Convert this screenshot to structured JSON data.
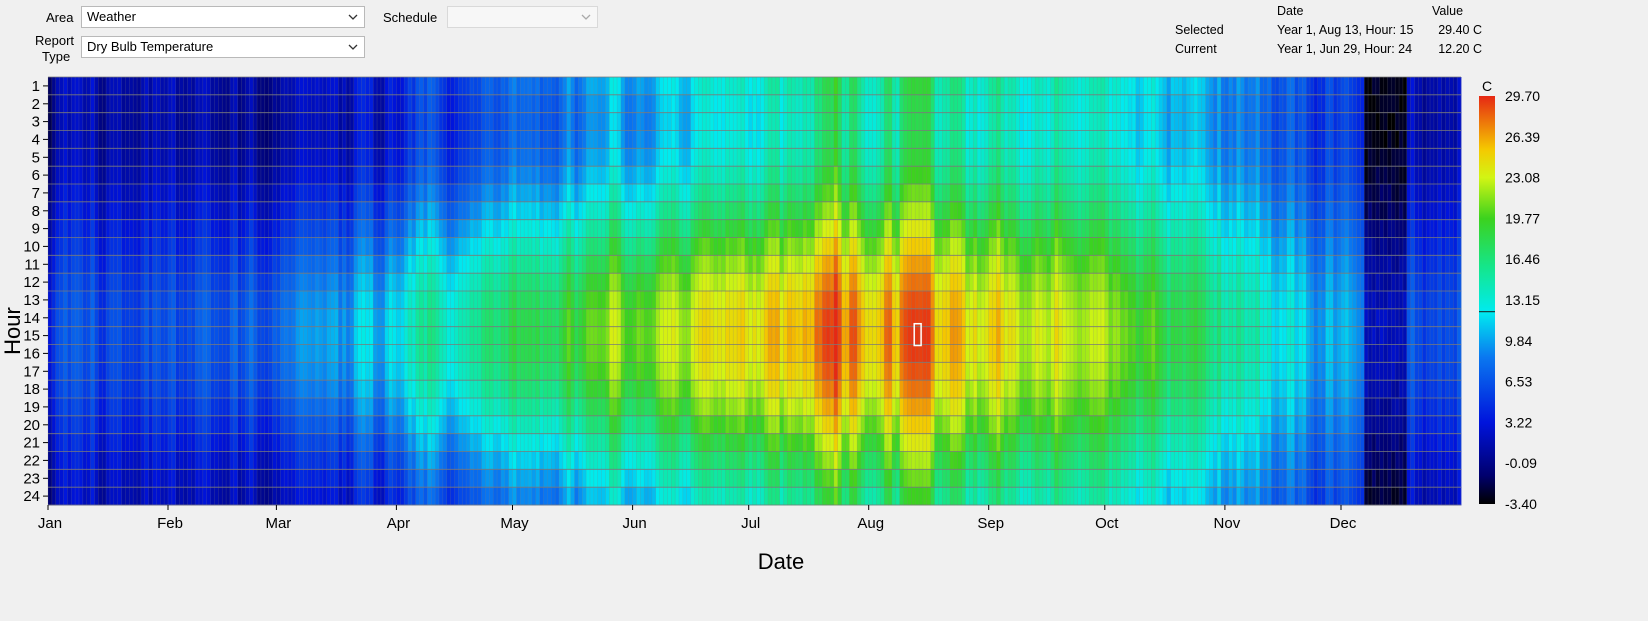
{
  "controls": {
    "area_label": "Area",
    "area_value": "Weather",
    "report_label_1": "Report",
    "report_label_2": "Type",
    "report_value": "Dry Bulb Temperature",
    "schedule_label": "Schedule",
    "schedule_value": ""
  },
  "readout": {
    "col_date": "Date",
    "col_value": "Value",
    "selected_label": "Selected",
    "selected_date": "Year 1, Aug 13, Hour: 15",
    "selected_value": "29.40 C",
    "current_label": "Current",
    "current_date": "Year 1, Jun 29, Hour: 24",
    "current_value": "12.20 C"
  },
  "chart_data": {
    "type": "heatmap",
    "xlabel": "Date",
    "ylabel": "Hour",
    "colorbar_unit": "C",
    "hours": [
      "1",
      "2",
      "3",
      "4",
      "5",
      "6",
      "7",
      "8",
      "9",
      "10",
      "11",
      "12",
      "13",
      "14",
      "15",
      "16",
      "17",
      "18",
      "19",
      "20",
      "21",
      "22",
      "23",
      "24"
    ],
    "months": [
      "Jan",
      "Feb",
      "Mar",
      "Apr",
      "May",
      "Jun",
      "Jul",
      "Aug",
      "Sep",
      "Oct",
      "Nov",
      "Dec"
    ],
    "days_in_year": 365,
    "colorbar_ticks": [
      "29.70",
      "26.39",
      "23.08",
      "19.77",
      "16.46",
      "13.15",
      "9.84",
      "6.53",
      "3.22",
      "-0.09",
      "-3.40"
    ],
    "vmin": -3.4,
    "vmax": 29.7,
    "current_marker_value": 12.2,
    "selected_cell": {
      "day": 225,
      "hour": 15
    },
    "daily_mean_by_month": [
      {
        "month": "Jan",
        "mean_c": 3.0
      },
      {
        "month": "Feb",
        "mean_c": 4.0
      },
      {
        "month": "Mar",
        "mean_c": 6.0
      },
      {
        "month": "Apr",
        "mean_c": 10.0
      },
      {
        "month": "May",
        "mean_c": 14.0
      },
      {
        "month": "Jun",
        "mean_c": 17.0
      },
      {
        "month": "Jul",
        "mean_c": 20.5
      },
      {
        "month": "Aug",
        "mean_c": 21.0
      },
      {
        "month": "Sep",
        "mean_c": 18.0
      },
      {
        "month": "Oct",
        "mean_c": 14.5
      },
      {
        "month": "Nov",
        "mean_c": 10.0
      },
      {
        "month": "Dec",
        "mean_c": 3.5
      }
    ],
    "daily_amplitude_c": {
      "winter": 2.5,
      "summer": 6.0
    },
    "peak_hour": 15,
    "hot_spells": [
      {
        "start_day": 200,
        "end_day": 202,
        "peak_c": 28.5
      },
      {
        "start_day": 222,
        "end_day": 226,
        "peak_c": 29.4
      }
    ],
    "cold_spells": [
      {
        "start_day": 340,
        "end_day": 350,
        "min_c": -2.5
      }
    ]
  }
}
